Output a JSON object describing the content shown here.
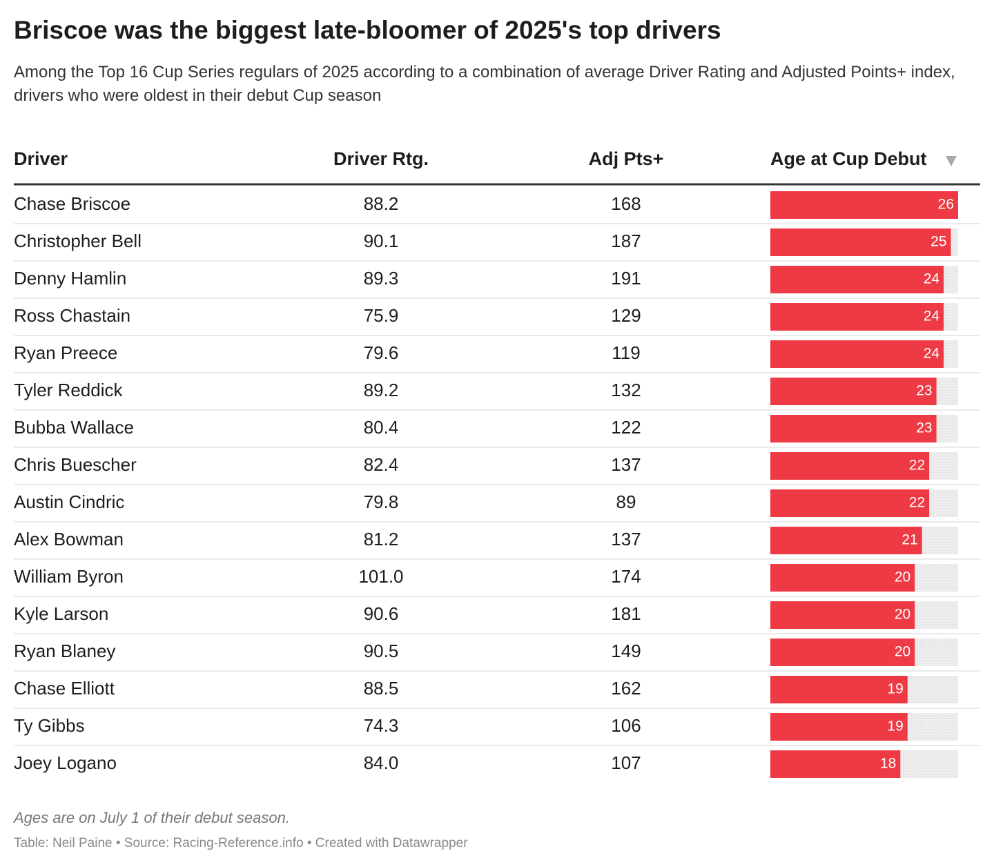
{
  "title": "Briscoe was the biggest late-bloomer of 2025's top drivers",
  "subtitle": "Among the Top 16 Cup Series regulars of 2025 according to a combination of average Driver Rating and Adjusted Points+ index, drivers who were oldest in their debut Cup season",
  "table": {
    "columns": [
      "Driver",
      "Driver Rtg.",
      "Adj Pts+",
      "Age at Cup Debut"
    ],
    "rows": [
      [
        "Chase Briscoe",
        "88.2",
        168,
        26
      ],
      [
        "Christopher Bell",
        "90.1",
        187,
        25
      ],
      [
        "Denny Hamlin",
        "89.3",
        191,
        24
      ],
      [
        "Ross Chastain",
        "75.9",
        129,
        24
      ],
      [
        "Ryan Preece",
        "79.6",
        119,
        24
      ],
      [
        "Tyler Reddick",
        "89.2",
        132,
        23
      ],
      [
        "Bubba Wallace",
        "80.4",
        122,
        23
      ],
      [
        "Chris Buescher",
        "82.4",
        137,
        22
      ],
      [
        "Austin Cindric",
        "79.8",
        89,
        22
      ],
      [
        "Alex Bowman",
        "81.2",
        137,
        21
      ],
      [
        "William Byron",
        "101.0",
        174,
        20
      ],
      [
        "Kyle Larson",
        "90.6",
        181,
        20
      ],
      [
        "Ryan Blaney",
        "90.5",
        149,
        20
      ],
      [
        "Chase Elliott",
        "88.5",
        162,
        19
      ],
      [
        "Ty Gibbs",
        "74.3",
        106,
        19
      ],
      [
        "Joey Logano",
        "84.0",
        107,
        18
      ]
    ],
    "bar_color": "#ee3a44"
  },
  "note": "Ages are on July 1 of their debut season.",
  "source": "Table: Neil Paine • Source: Racing-Reference.info • Created with Datawrapper"
}
